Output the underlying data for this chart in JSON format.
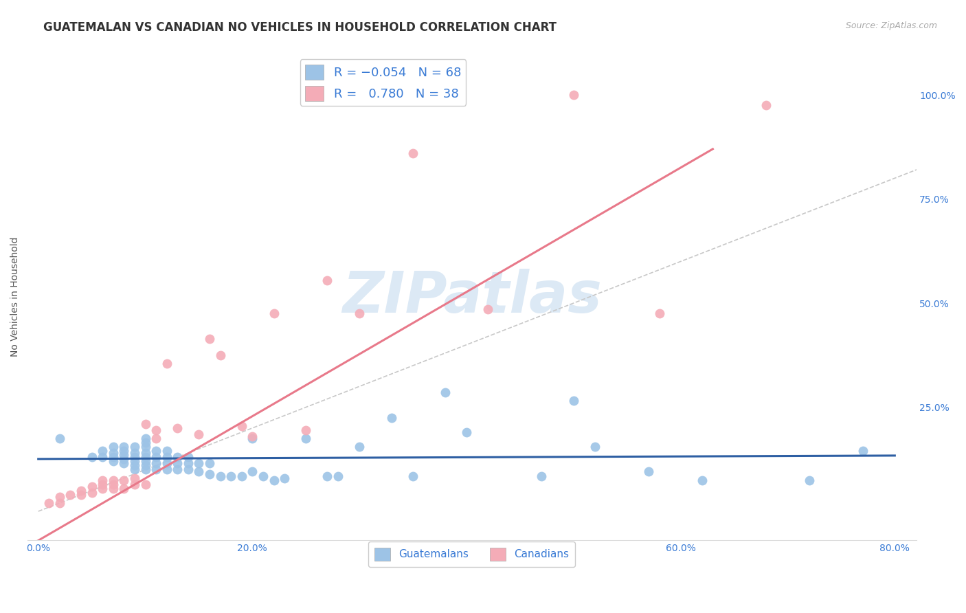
{
  "title": "GUATEMALAN VS CANADIAN NO VEHICLES IN HOUSEHOLD CORRELATION CHART",
  "source": "Source: ZipAtlas.com",
  "ylabel": "No Vehicles in Household",
  "xlabel_ticks": [
    "0.0%",
    "20.0%",
    "40.0%",
    "60.0%",
    "80.0%"
  ],
  "xlabel_vals": [
    0.0,
    0.2,
    0.4,
    0.6,
    0.8
  ],
  "ylabel_ticks": [
    "25.0%",
    "50.0%",
    "75.0%",
    "100.0%"
  ],
  "ylabel_vals": [
    0.25,
    0.5,
    0.75,
    1.0
  ],
  "xlim": [
    -0.01,
    0.82
  ],
  "ylim": [
    -0.07,
    1.1
  ],
  "guatemalan_R": -0.054,
  "guatemalan_N": 68,
  "canadian_R": 0.78,
  "canadian_N": 38,
  "guatemalan_color": "#9dc3e6",
  "canadian_color": "#f4acb7",
  "guatemalan_line_color": "#2e5fa3",
  "canadian_line_color": "#e8798a",
  "diagonal_color": "#c8c8c8",
  "watermark": "ZIPatlas",
  "watermark_color": "#dce9f5",
  "title_fontsize": 12,
  "label_fontsize": 10,
  "tick_fontsize": 10,
  "legend_fontsize": 13,
  "guatemalan_x": [
    0.02,
    0.05,
    0.06,
    0.06,
    0.07,
    0.07,
    0.07,
    0.07,
    0.08,
    0.08,
    0.08,
    0.08,
    0.08,
    0.09,
    0.09,
    0.09,
    0.09,
    0.09,
    0.09,
    0.1,
    0.1,
    0.1,
    0.1,
    0.1,
    0.1,
    0.1,
    0.1,
    0.11,
    0.11,
    0.11,
    0.11,
    0.12,
    0.12,
    0.12,
    0.12,
    0.13,
    0.13,
    0.13,
    0.14,
    0.14,
    0.14,
    0.15,
    0.15,
    0.16,
    0.16,
    0.17,
    0.18,
    0.19,
    0.2,
    0.2,
    0.21,
    0.22,
    0.23,
    0.25,
    0.27,
    0.28,
    0.3,
    0.33,
    0.35,
    0.38,
    0.4,
    0.47,
    0.5,
    0.52,
    0.57,
    0.62,
    0.72,
    0.77
  ],
  "guatemalan_y": [
    0.175,
    0.13,
    0.13,
    0.145,
    0.12,
    0.13,
    0.14,
    0.155,
    0.115,
    0.125,
    0.135,
    0.145,
    0.155,
    0.1,
    0.11,
    0.12,
    0.13,
    0.14,
    0.155,
    0.1,
    0.11,
    0.12,
    0.13,
    0.14,
    0.155,
    0.165,
    0.175,
    0.1,
    0.115,
    0.13,
    0.145,
    0.1,
    0.115,
    0.13,
    0.145,
    0.1,
    0.115,
    0.13,
    0.1,
    0.115,
    0.13,
    0.095,
    0.115,
    0.09,
    0.115,
    0.085,
    0.085,
    0.085,
    0.175,
    0.095,
    0.085,
    0.075,
    0.08,
    0.175,
    0.085,
    0.085,
    0.155,
    0.225,
    0.085,
    0.285,
    0.19,
    0.085,
    0.265,
    0.155,
    0.095,
    0.075,
    0.075,
    0.145
  ],
  "canadian_x": [
    0.01,
    0.02,
    0.02,
    0.03,
    0.04,
    0.04,
    0.05,
    0.05,
    0.06,
    0.06,
    0.06,
    0.07,
    0.07,
    0.07,
    0.08,
    0.08,
    0.09,
    0.09,
    0.1,
    0.1,
    0.11,
    0.11,
    0.12,
    0.13,
    0.15,
    0.16,
    0.17,
    0.19,
    0.2,
    0.22,
    0.25,
    0.27,
    0.3,
    0.35,
    0.42,
    0.5,
    0.58,
    0.68
  ],
  "canadian_y": [
    0.02,
    0.02,
    0.035,
    0.04,
    0.04,
    0.05,
    0.045,
    0.06,
    0.055,
    0.065,
    0.075,
    0.055,
    0.065,
    0.075,
    0.055,
    0.075,
    0.065,
    0.08,
    0.065,
    0.21,
    0.175,
    0.195,
    0.355,
    0.2,
    0.185,
    0.415,
    0.375,
    0.205,
    0.18,
    0.475,
    0.195,
    0.555,
    0.475,
    0.86,
    0.485,
    1.0,
    0.475,
    0.975
  ],
  "guat_line_x0": 0.0,
  "guat_line_x1": 0.8,
  "guat_line_y0": 0.148,
  "guat_line_y1": 0.13,
  "can_line_x0": 0.0,
  "can_line_x1": 0.63,
  "can_line_y0": -0.07,
  "can_line_y1": 0.87
}
